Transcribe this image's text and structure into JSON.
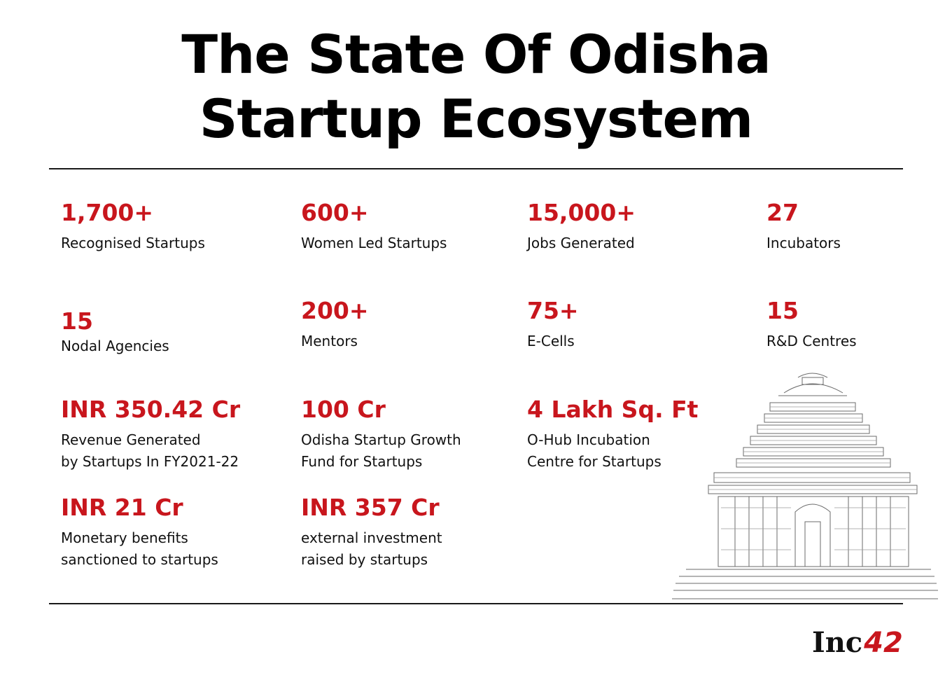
{
  "title": {
    "line1": "The State Of Odisha",
    "line2": "Startup Ecosystem"
  },
  "stats": [
    {
      "value": "1,700+",
      "label_lines": [
        "Recognised Startups"
      ]
    },
    {
      "value": "600+",
      "label_lines": [
        "Women Led Startups"
      ]
    },
    {
      "value": "15,000+",
      "label_lines": [
        "Jobs Generated"
      ]
    },
    {
      "value": "27",
      "label_lines": [
        "Incubators"
      ]
    },
    {
      "value": "15",
      "label_lines": [
        "Nodal Agencies"
      ]
    },
    {
      "value": "200+",
      "label_lines": [
        "Mentors"
      ]
    },
    {
      "value": "75+",
      "label_lines": [
        "E-Cells"
      ]
    },
    {
      "value": "15",
      "label_lines": [
        "R&D Centres"
      ]
    },
    {
      "value": "INR 350.42 Cr",
      "label_lines": [
        "Revenue Generated",
        "by Startups In FY2021-22"
      ]
    },
    {
      "value": "100 Cr",
      "label_lines": [
        "Odisha Startup Growth",
        "Fund for Startups"
      ]
    },
    {
      "value": "4 Lakh Sq. Ft",
      "label_lines": [
        "O-Hub Incubation",
        "Centre for Startups"
      ]
    },
    {
      "value": "INR 21 Cr",
      "label_lines": [
        "Monetary benefits",
        "sanctioned to startups"
      ]
    },
    {
      "value": "INR 357 Cr",
      "label_lines": [
        "external investment",
        "raised by startups"
      ]
    }
  ],
  "logo": {
    "text": "Inc",
    "number": "42"
  },
  "colors": {
    "accent": "#c8161d",
    "text": "#111111",
    "rule": "#1a1a1a"
  },
  "icons": [
    "temple-illustration"
  ]
}
